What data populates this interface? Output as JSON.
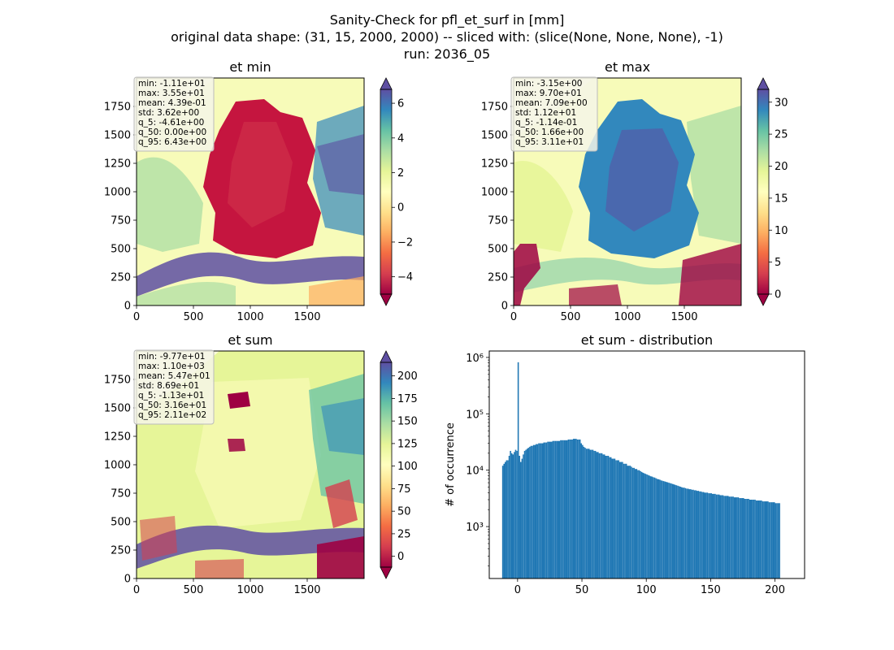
{
  "figure": {
    "suptitle_lines": [
      "Sanity-Check for pfl_et_surf in [mm]",
      "original data shape: (31, 15, 2000, 2000) -- sliced with: (slice(None, None, None), -1)",
      "run: 2036_05"
    ]
  },
  "chart_data": [
    {
      "type": "heatmap",
      "title": "et min",
      "xlim": [
        0,
        2000
      ],
      "ylim": [
        0,
        2000
      ],
      "x_ticks": [
        0,
        500,
        1000,
        1500
      ],
      "y_ticks": [
        0,
        250,
        500,
        750,
        1000,
        1250,
        1500,
        1750
      ],
      "colormap": "Spectral",
      "colorbar": {
        "min": -5,
        "max": 6.8,
        "ticks": [
          -4,
          -2,
          0,
          2,
          4,
          6
        ],
        "extend": "both"
      },
      "stats": [
        "min: -1.11e+01",
        "max: 3.55e+01",
        "mean: 4.39e-01",
        "std: 3.62e+00",
        "q_5: -4.61e+00",
        "q_50: 0.00e+00",
        "q_95: 6.43e+00"
      ]
    },
    {
      "type": "heatmap",
      "title": "et max",
      "xlim": [
        0,
        2000
      ],
      "ylim": [
        0,
        2000
      ],
      "x_ticks": [
        0,
        500,
        1000,
        1500
      ],
      "y_ticks": [
        0,
        250,
        500,
        750,
        1000,
        1250,
        1500,
        1750
      ],
      "colormap": "Spectral",
      "colorbar": {
        "min": 0,
        "max": 32,
        "ticks": [
          0,
          5,
          10,
          15,
          20,
          25,
          30
        ],
        "extend": "both"
      },
      "stats": [
        "min: -3.15e+00",
        "max: 9.70e+01",
        "mean: 7.09e+00",
        "std: 1.12e+01",
        "q_5: -1.14e-01",
        "q_50: 1.66e+00",
        "q_95: 3.11e+01"
      ]
    },
    {
      "type": "heatmap",
      "title": "et sum",
      "xlim": [
        0,
        2000
      ],
      "ylim": [
        0,
        2000
      ],
      "x_ticks": [
        0,
        500,
        1000,
        1500
      ],
      "y_ticks": [
        0,
        250,
        500,
        750,
        1000,
        1250,
        1500,
        1750
      ],
      "colormap": "Spectral",
      "colorbar": {
        "min": -12,
        "max": 215,
        "ticks": [
          0,
          25,
          50,
          75,
          100,
          125,
          150,
          175,
          200
        ],
        "extend": "both"
      },
      "stats": [
        "min: -9.77e+01",
        "max: 1.10e+03",
        "mean: 5.47e+01",
        "std: 8.69e+01",
        "q_5: -1.13e+01",
        "q_50: 3.16e+01",
        "q_95: 2.11e+02"
      ]
    },
    {
      "type": "bar",
      "title": "et sum - distribution",
      "ylabel": "# of occurrence",
      "yscale": "log",
      "xlim": [
        -22,
        223
      ],
      "ylim": [
        120,
        1300000
      ],
      "x_ticks": [
        0,
        50,
        100,
        150,
        200
      ],
      "y_ticks": [
        {
          "value": 1000,
          "label": "10³"
        },
        {
          "value": 10000,
          "label": "10⁴"
        },
        {
          "value": 100000,
          "label": "10⁵"
        },
        {
          "value": 1000000,
          "label": "10⁶"
        }
      ],
      "color": "#1f77b4",
      "bin_start": -12,
      "bin_width": 1,
      "counts": [
        12000,
        13000,
        14000,
        15000,
        15000,
        18000,
        22000,
        20000,
        19000,
        21000,
        23000,
        22000,
        821000,
        18000,
        14000,
        16000,
        19000,
        22000,
        23000,
        24000,
        25000,
        26000,
        27000,
        27000,
        28000,
        28000,
        29000,
        29000,
        30000,
        30000,
        30000,
        30000,
        31000,
        31000,
        31000,
        32000,
        32000,
        32000,
        32000,
        33000,
        33000,
        33000,
        33000,
        33000,
        33000,
        34000,
        34000,
        34000,
        34000,
        34000,
        34000,
        35000,
        35000,
        35000,
        35000,
        36000,
        36000,
        36000,
        35000,
        35000,
        35000,
        30000,
        28000,
        26000,
        25000,
        24000,
        24000,
        24000,
        23000,
        23000,
        23000,
        22000,
        22000,
        21000,
        21000,
        20000,
        20000,
        20000,
        19000,
        19000,
        18000,
        18000,
        18000,
        17000,
        17000,
        16000,
        16000,
        16000,
        15000,
        15000,
        15000,
        14000,
        14000,
        14000,
        13000,
        13000,
        13000,
        12000,
        12000,
        12000,
        11500,
        11000,
        11000,
        10500,
        10500,
        10000,
        10000,
        9600,
        9300,
        9000,
        8800,
        8600,
        8400,
        8200,
        8000,
        7800,
        7700,
        7500,
        7400,
        7200,
        7000,
        6900,
        6800,
        6600,
        6500,
        6400,
        6300,
        6200,
        6100,
        6000,
        5900,
        5800,
        5700,
        5600,
        5500,
        5400,
        5300,
        5200,
        5100,
        5000,
        4900,
        4900,
        4800,
        4700,
        4700,
        4600,
        4600,
        4500,
        4500,
        4400,
        4400,
        4300,
        4300,
        4200,
        4200,
        4100,
        4100,
        4000,
        4000,
        4000,
        3900,
        3900,
        3900,
        3800,
        3800,
        3800,
        3700,
        3700,
        3700,
        3600,
        3600,
        3600,
        3500,
        3500,
        3500,
        3500,
        3400,
        3400,
        3400,
        3400,
        3300,
        3300,
        3300,
        3300,
        3200,
        3200,
        3200,
        3200,
        3100,
        3100,
        3100,
        3100,
        3000,
        3000,
        3000,
        3000,
        3000,
        2900,
        2900,
        2900,
        2900,
        2900,
        2800,
        2800,
        2800,
        2800,
        2800,
        2700,
        2700,
        2700,
        2700,
        2700,
        2600,
        2600,
        2600,
        2600
      ]
    }
  ]
}
